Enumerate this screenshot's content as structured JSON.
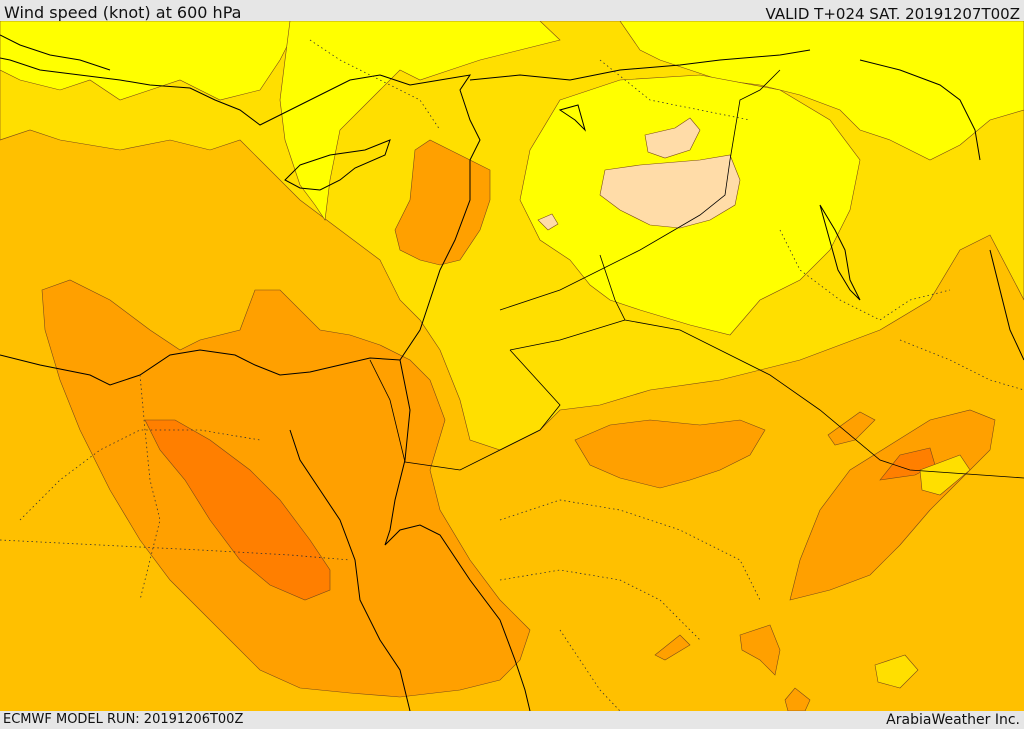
{
  "header": {
    "title": "Wind speed (knot) at 600 hPa",
    "valid_time": "VALID T+024 SAT. 20191207T00Z"
  },
  "footer": {
    "model_run": "ECMWF MODEL RUN: 20191206T00Z",
    "credit": "ArabiaWeather Inc."
  },
  "palette": {
    "band_1": "#ffff00",
    "band_2": "#ffdf00",
    "band_3": "#ffc000",
    "band_4": "#ffa000",
    "band_5": "#ff7f00",
    "band_calm": "#ffdca8",
    "coastline": "#000000",
    "contour_line": "#7a4a1a"
  }
}
